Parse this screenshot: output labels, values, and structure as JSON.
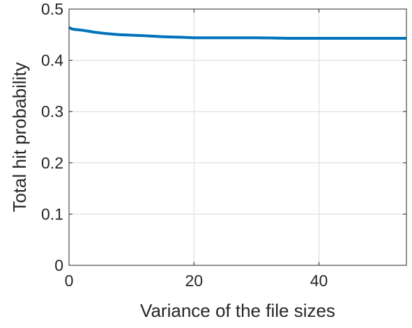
{
  "chart_data": {
    "type": "line",
    "title": "",
    "xlabel": "Variance of the file sizes",
    "ylabel": "Total hit probability",
    "xlim": [
      0,
      54
    ],
    "ylim": [
      0,
      0.5
    ],
    "xticks": [
      0,
      20,
      40
    ],
    "xtick_labels": [
      "0",
      "20",
      "40"
    ],
    "yticks": [
      0,
      0.1,
      0.2,
      0.3,
      0.4,
      0.5
    ],
    "ytick_labels": [
      "0",
      "0.1",
      "0.2",
      "0.3",
      "0.4",
      "0.5"
    ],
    "grid": true,
    "legend": "none",
    "series": [
      {
        "color": "#0072BD",
        "x": [
          0,
          0.5,
          1,
          2,
          4,
          6,
          8,
          10,
          12,
          15,
          18,
          20,
          25,
          30,
          35,
          40,
          45,
          50,
          54
        ],
        "y": [
          0.464,
          0.461,
          0.46,
          0.459,
          0.455,
          0.452,
          0.45,
          0.449,
          0.448,
          0.446,
          0.445,
          0.444,
          0.444,
          0.444,
          0.443,
          0.443,
          0.443,
          0.443,
          0.443
        ]
      }
    ]
  }
}
